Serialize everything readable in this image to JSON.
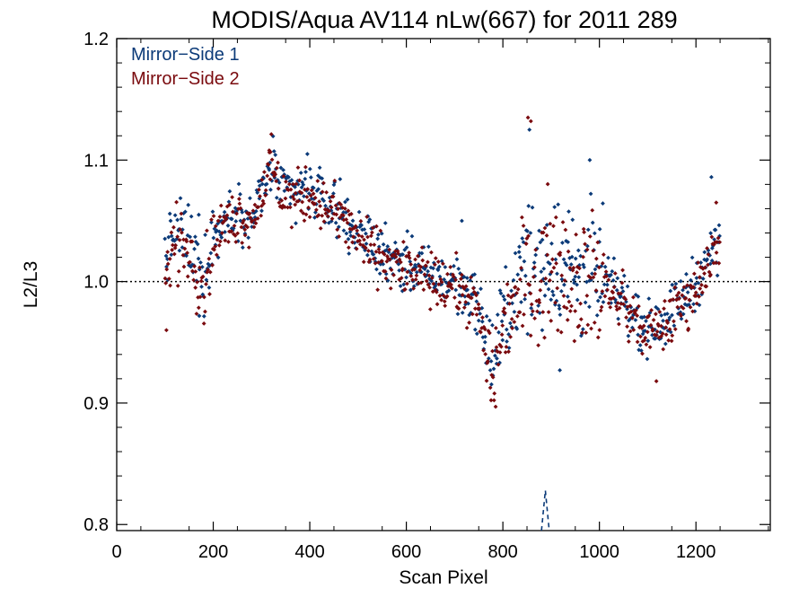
{
  "chart_data": {
    "type": "scatter",
    "title": "MODIS/Aqua AV114 nLw(667) for 2011 289",
    "xlabel": "Scan Pixel",
    "ylabel": "L2/L3",
    "xlim": [
      0,
      1354
    ],
    "ylim": [
      0.795,
      1.2
    ],
    "xticks": [
      0,
      200,
      400,
      600,
      800,
      1000,
      1200
    ],
    "xtick_labels": [
      "0",
      "200",
      "400",
      "600",
      "800",
      "1000",
      "1200"
    ],
    "yticks": [
      0.8,
      0.9,
      1.0,
      1.1,
      1.2
    ],
    "ytick_labels": [
      "0.8",
      "0.9",
      "1.0",
      "1.1",
      "1.2"
    ],
    "reference_line": 1.0,
    "legend_position": "top-left",
    "series": [
      {
        "name": "Mirror−Side 1",
        "color": "#0b3a78",
        "trend": [
          [
            100,
            1.02
          ],
          [
            120,
            1.04
          ],
          [
            150,
            1.035
          ],
          [
            180,
            1.0
          ],
          [
            200,
            1.04
          ],
          [
            250,
            1.06
          ],
          [
            280,
            1.05
          ],
          [
            320,
            1.095
          ],
          [
            340,
            1.075
          ],
          [
            400,
            1.075
          ],
          [
            460,
            1.06
          ],
          [
            500,
            1.04
          ],
          [
            550,
            1.025
          ],
          [
            600,
            1.015
          ],
          [
            650,
            1.005
          ],
          [
            700,
            1.0
          ],
          [
            740,
            0.99
          ],
          [
            780,
            0.93
          ],
          [
            800,
            0.97
          ],
          [
            850,
            1.01
          ],
          [
            900,
            1.02
          ],
          [
            950,
            1.01
          ],
          [
            1000,
            1.005
          ],
          [
            1050,
            0.985
          ],
          [
            1100,
            0.96
          ],
          [
            1150,
            0.975
          ],
          [
            1200,
            1.0
          ],
          [
            1240,
            1.03
          ]
        ],
        "outliers": [
          [
            855,
            1.125
          ],
          [
            980,
            1.1
          ],
          [
            1232,
            1.086
          ],
          [
            918,
            0.927
          ],
          [
            395,
            1.105
          ],
          [
            715,
            1.05
          ],
          [
            170,
            1.055
          ]
        ],
        "marker": "diamond"
      },
      {
        "name": "Mirror−Side 2",
        "color": "#7a0a0e",
        "trend": [
          [
            100,
            1.01
          ],
          [
            120,
            1.03
          ],
          [
            150,
            1.03
          ],
          [
            180,
            0.995
          ],
          [
            200,
            1.035
          ],
          [
            250,
            1.055
          ],
          [
            280,
            1.05
          ],
          [
            320,
            1.095
          ],
          [
            340,
            1.07
          ],
          [
            400,
            1.07
          ],
          [
            460,
            1.055
          ],
          [
            500,
            1.035
          ],
          [
            550,
            1.02
          ],
          [
            600,
            1.01
          ],
          [
            650,
            1.0
          ],
          [
            700,
            0.995
          ],
          [
            740,
            0.985
          ],
          [
            780,
            0.92
          ],
          [
            800,
            0.965
          ],
          [
            850,
            1.005
          ],
          [
            900,
            1.015
          ],
          [
            950,
            1.005
          ],
          [
            1000,
            1.0
          ],
          [
            1050,
            0.98
          ],
          [
            1100,
            0.955
          ],
          [
            1150,
            0.97
          ],
          [
            1200,
            0.995
          ],
          [
            1240,
            1.025
          ]
        ],
        "outliers": [
          [
            852,
            1.135
          ],
          [
            858,
            1.132
          ],
          [
            316,
            1.108
          ],
          [
            103,
            0.96
          ],
          [
            785,
            0.897
          ],
          [
            1118,
            0.918
          ],
          [
            1242,
            1.065
          ]
        ],
        "marker": "diamond"
      }
    ],
    "annotation_line": {
      "color": "#0b3a78",
      "style": "dashed",
      "points": [
        [
          880,
          0.795
        ],
        [
          888,
          0.828
        ],
        [
          896,
          0.795
        ]
      ]
    }
  }
}
